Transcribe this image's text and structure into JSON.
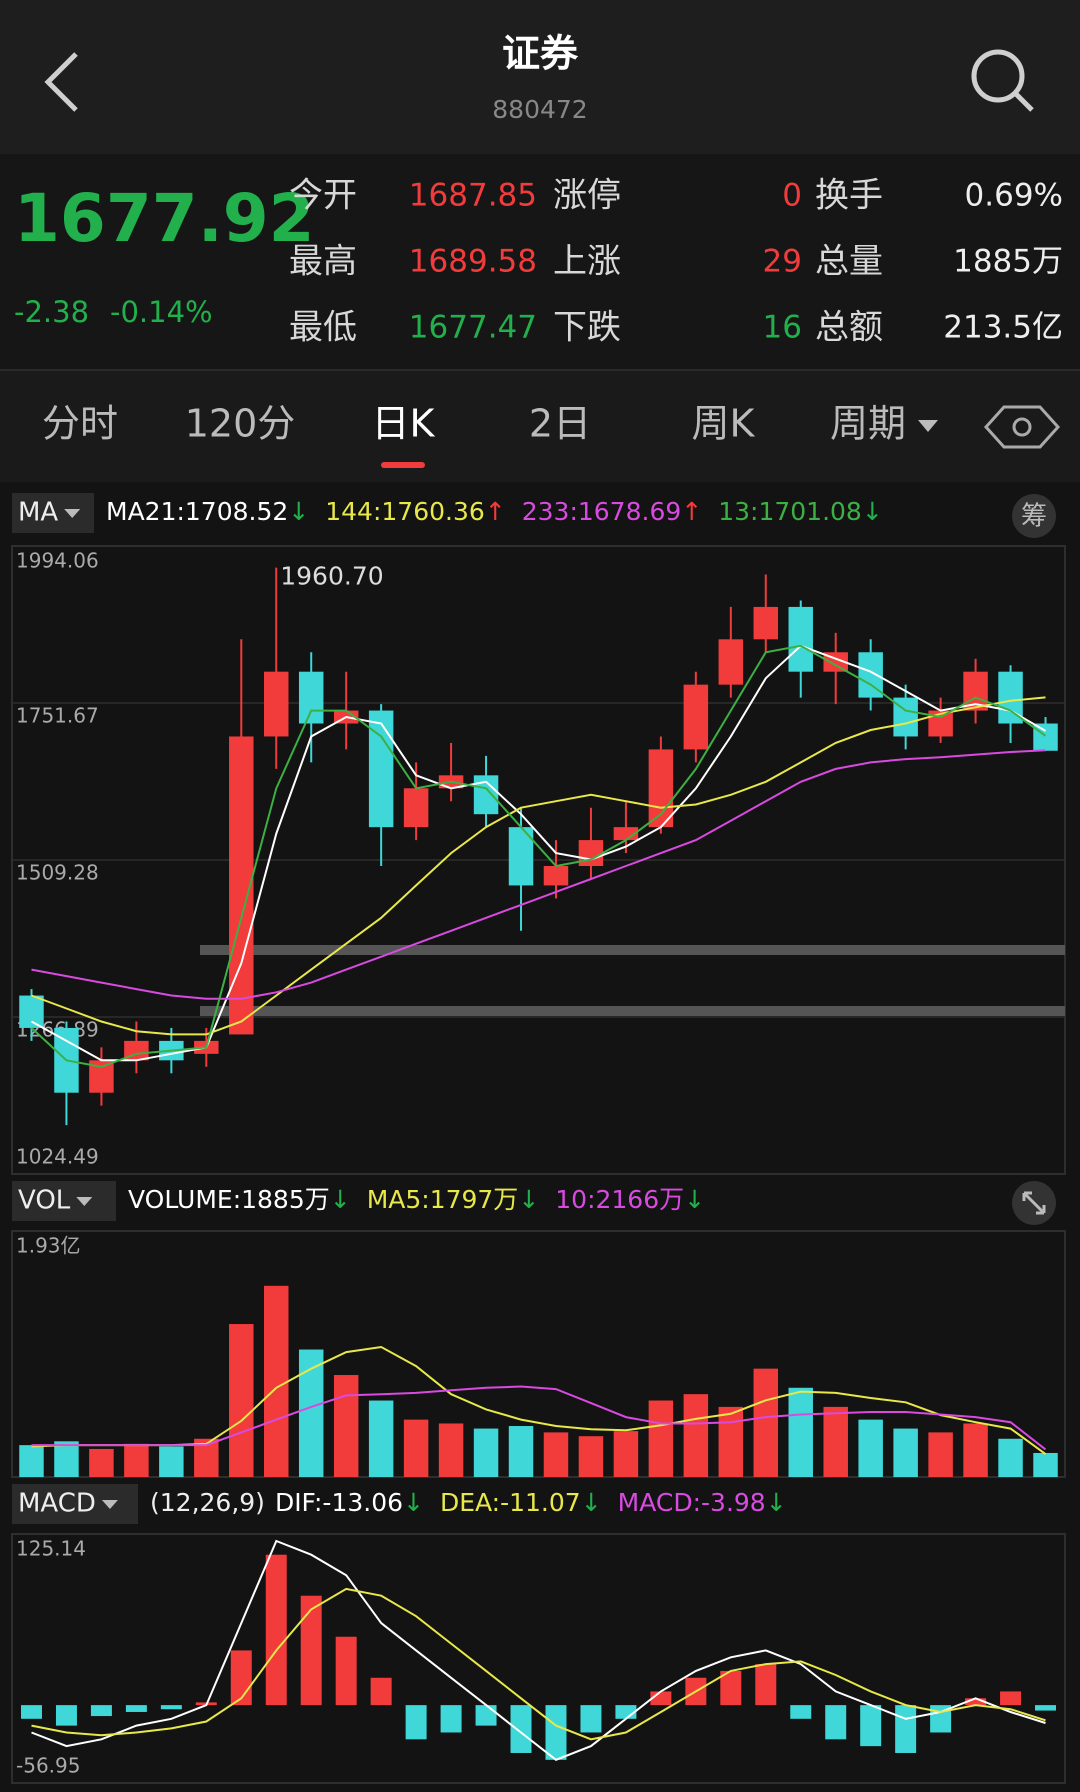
{
  "header": {
    "title": "证券",
    "code": "880472"
  },
  "quote": {
    "price": "1677.92",
    "change": "-2.38",
    "percent": "-0.14%",
    "stats": [
      [
        {
          "label": "今开",
          "value": "1687.85",
          "color": "#f23c3c"
        },
        {
          "label": "涨停",
          "value": "0",
          "color": "#f23c3c"
        },
        {
          "label": "换手",
          "value": "0.69%",
          "color": "#eeeeee"
        }
      ],
      [
        {
          "label": "最高",
          "value": "1689.58",
          "color": "#f23c3c"
        },
        {
          "label": "上涨",
          "value": "29",
          "color": "#f23c3c"
        },
        {
          "label": "总量",
          "value": "1885万",
          "color": "#eeeeee"
        }
      ],
      [
        {
          "label": "最低",
          "value": "1677.47",
          "color": "#21b04b"
        },
        {
          "label": "下跌",
          "value": "16",
          "color": "#21b04b"
        },
        {
          "label": "总额",
          "value": "213.5亿",
          "color": "#eeeeee"
        }
      ]
    ]
  },
  "tabs": {
    "items": [
      "分时",
      "120分",
      "日K",
      "2日",
      "周K",
      "周期"
    ],
    "active": 2
  },
  "chip_button": "筹",
  "chart_data": [
    {
      "type": "candlestick",
      "indicator": "MA",
      "legend": [
        {
          "text": "MA21:1708.52",
          "arrow": "↓",
          "color": "#ffffff",
          "arrow_color": "#21b04b"
        },
        {
          "text": "144:1760.36",
          "arrow": "↑",
          "color": "#e8e84a",
          "arrow_color": "#f23c3c"
        },
        {
          "text": "233:1678.69",
          "arrow": "↑",
          "color": "#d84ae0",
          "arrow_color": "#f23c3c"
        },
        {
          "text": "13:1701.08",
          "arrow": "↓",
          "color": "#3cb043",
          "arrow_color": "#21b04b"
        }
      ],
      "annotation": "1960.70",
      "ylim": [
        1024.49,
        1994.06
      ],
      "yticks": [
        1994.06,
        1751.67,
        1509.28,
        1266.89,
        1024.49
      ],
      "up_color": "#f23c3c",
      "down_color": "#3fd7d7",
      "open": [
        1300,
        1250,
        1150,
        1200,
        1230,
        1210,
        1240,
        1700,
        1800,
        1720,
        1740,
        1560,
        1620,
        1640,
        1560,
        1470,
        1500,
        1540,
        1560,
        1680,
        1780,
        1850,
        1900,
        1800,
        1830,
        1760,
        1700,
        1740,
        1800,
        1720
      ],
      "close": [
        1250,
        1150,
        1200,
        1230,
        1200,
        1230,
        1700,
        1800,
        1720,
        1740,
        1560,
        1620,
        1640,
        1580,
        1470,
        1500,
        1540,
        1560,
        1680,
        1780,
        1850,
        1900,
        1800,
        1830,
        1760,
        1700,
        1740,
        1800,
        1720,
        1677.92
      ],
      "high": [
        1310,
        1260,
        1220,
        1260,
        1250,
        1250,
        1850,
        1960.7,
        1830,
        1800,
        1750,
        1660,
        1690,
        1670,
        1590,
        1540,
        1590,
        1600,
        1700,
        1800,
        1900,
        1950,
        1910,
        1860,
        1850,
        1780,
        1760,
        1820,
        1810,
        1730
      ],
      "low": [
        1230,
        1100,
        1130,
        1180,
        1180,
        1190,
        1240,
        1650,
        1660,
        1680,
        1500,
        1540,
        1600,
        1560,
        1400,
        1450,
        1480,
        1520,
        1550,
        1660,
        1760,
        1830,
        1760,
        1750,
        1740,
        1680,
        1690,
        1720,
        1690,
        1677.47
      ],
      "series": [
        {
          "name": "MA21",
          "color": "#ffffff",
          "values": [
            1260,
            1230,
            1200,
            1200,
            1210,
            1220,
            1350,
            1550,
            1700,
            1730,
            1720,
            1640,
            1620,
            1630,
            1580,
            1520,
            1510,
            1530,
            1560,
            1620,
            1700,
            1790,
            1840,
            1820,
            1800,
            1770,
            1740,
            1750,
            1740,
            1708.52
          ]
        },
        {
          "name": "144",
          "color": "#e8e84a",
          "values": [
            1300,
            1280,
            1260,
            1245,
            1240,
            1240,
            1260,
            1300,
            1340,
            1380,
            1420,
            1470,
            1520,
            1560,
            1590,
            1600,
            1610,
            1600,
            1590,
            1595,
            1610,
            1630,
            1660,
            1690,
            1710,
            1720,
            1735,
            1745,
            1755,
            1760.36
          ]
        },
        {
          "name": "233",
          "color": "#d84ae0",
          "values": [
            1340,
            1330,
            1320,
            1310,
            1300,
            1295,
            1295,
            1305,
            1320,
            1340,
            1360,
            1380,
            1400,
            1420,
            1440,
            1460,
            1480,
            1500,
            1520,
            1540,
            1570,
            1600,
            1630,
            1650,
            1660,
            1665,
            1668,
            1672,
            1676,
            1678.69
          ]
        },
        {
          "name": "13",
          "color": "#3cb043",
          "values": [
            1250,
            1200,
            1190,
            1210,
            1215,
            1220,
            1420,
            1620,
            1740,
            1740,
            1700,
            1620,
            1630,
            1620,
            1560,
            1500,
            1510,
            1540,
            1580,
            1650,
            1740,
            1830,
            1840,
            1810,
            1780,
            1740,
            1730,
            1760,
            1740,
            1701.08
          ]
        }
      ]
    },
    {
      "type": "volume",
      "indicator": "VOL",
      "legend": [
        {
          "text": "VOLUME:1885万",
          "arrow": "↓",
          "color": "#ffffff",
          "arrow_color": "#21b04b"
        },
        {
          "text": "MA5:1797万",
          "arrow": "↓",
          "color": "#e8e84a",
          "arrow_color": "#21b04b"
        },
        {
          "text": "10:2166万",
          "arrow": "↓",
          "color": "#d84ae0",
          "arrow_color": "#21b04b"
        }
      ],
      "ylim": [
        0,
        19300
      ],
      "yticks": [
        {
          "value": 19300,
          "label": "1.93亿"
        }
      ],
      "values": [
        2500,
        2800,
        2200,
        2600,
        2400,
        3000,
        12000,
        15000,
        10000,
        8000,
        6000,
        4500,
        4200,
        3800,
        4000,
        3500,
        3200,
        3600,
        6000,
        6500,
        5500,
        8500,
        7000,
        5500,
        4500,
        3800,
        3500,
        4200,
        3000,
        1885
      ],
      "series": [
        {
          "name": "MA5",
          "color": "#e8e84a",
          "values": [
            2400,
            2500,
            2500,
            2500,
            2500,
            2600,
            4400,
            7000,
            8500,
            9800,
            10200,
            8700,
            6500,
            5300,
            4500,
            4000,
            3740,
            3660,
            4060,
            4560,
            4960,
            6020,
            6700,
            6600,
            6200,
            5860,
            4860,
            4300,
            3800,
            1797
          ]
        },
        {
          "name": "10",
          "color": "#d84ae0",
          "values": [
            2500,
            2500,
            2500,
            2500,
            2500,
            2500,
            3500,
            4500,
            5500,
            6400,
            6500,
            6600,
            6800,
            7000,
            7100,
            6900,
            5800,
            4700,
            4200,
            4200,
            4300,
            4700,
            4900,
            5000,
            5100,
            5100,
            4900,
            4700,
            4300,
            2166
          ]
        }
      ]
    },
    {
      "type": "macd",
      "indicator": "MACD",
      "params": "(12,26,9)",
      "legend": [
        {
          "text": "DIF:-13.06",
          "arrow": "↓",
          "color": "#ffffff",
          "arrow_color": "#21b04b"
        },
        {
          "text": "DEA:-11.07",
          "arrow": "↓",
          "color": "#e8e84a",
          "arrow_color": "#21b04b"
        },
        {
          "text": "MACD:-3.98",
          "arrow": "↓",
          "color": "#d84ae0",
          "arrow_color": "#21b04b"
        }
      ],
      "ylim": [
        -56.95,
        125.14
      ],
      "yticks": [
        125.14,
        -56.95
      ],
      "values": [
        -10,
        -15,
        -8,
        -5,
        -3,
        2,
        40,
        110,
        80,
        50,
        20,
        -25,
        -20,
        -15,
        -35,
        -40,
        -20,
        -10,
        10,
        20,
        25,
        30,
        -10,
        -25,
        -30,
        -35,
        -20,
        5,
        10,
        -3.98
      ],
      "series": [
        {
          "name": "DIF",
          "color": "#ffffff",
          "values": [
            -20,
            -30,
            -25,
            -15,
            -10,
            0,
            60,
            120,
            110,
            95,
            60,
            40,
            20,
            0,
            -20,
            -40,
            -30,
            -10,
            10,
            25,
            35,
            40,
            30,
            10,
            0,
            -10,
            -5,
            5,
            -5,
            -13.06
          ]
        },
        {
          "name": "DEA",
          "color": "#e8e84a",
          "values": [
            -15,
            -20,
            -22,
            -20,
            -17,
            -12,
            5,
            40,
            70,
            85,
            80,
            65,
            45,
            25,
            5,
            -15,
            -25,
            -20,
            -5,
            10,
            25,
            30,
            32,
            22,
            10,
            0,
            -5,
            0,
            -3,
            -11.07
          ]
        }
      ]
    }
  ]
}
